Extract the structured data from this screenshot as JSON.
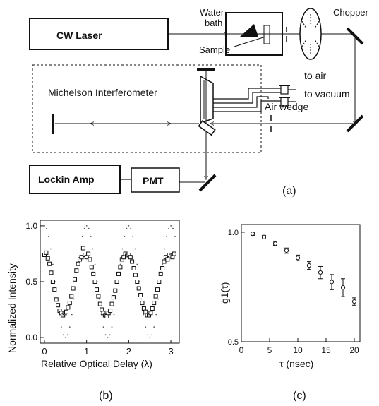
{
  "diagram": {
    "labels": {
      "cw_laser": "CW Laser",
      "water_bath_line1": "Water",
      "water_bath_line2": "bath",
      "sample": "Sample",
      "chopper": "Chopper",
      "michelson": "Michelson Interferometer",
      "to_air": "to air",
      "to_vacuum": "to vacuum",
      "air_wedge": "Air wedge",
      "lockin": "Lockin Amp",
      "pmt": "PMT"
    },
    "panel_labels": {
      "a": "(a)",
      "b": "(b)",
      "c": "(c)"
    }
  },
  "chart_data": [
    {
      "type": "scatter",
      "ylabel": "Normalized Intensity",
      "xlabel": "Relative Optical Delay (λ)",
      "xlim": [
        -0.1,
        3.2
      ],
      "ylim": [
        -0.05,
        1.05
      ],
      "xticks": [
        0,
        1,
        2,
        3
      ],
      "xtick_labels": [
        "0",
        "1",
        "2",
        "3"
      ],
      "yticks": [
        0.0,
        0.5,
        1.0
      ],
      "ytick_labels": [
        "0.0",
        "0.5",
        "1.0"
      ],
      "series": [
        {
          "style": "dotted-curve",
          "model": "0.5 + 0.5*cos(2*pi*x)",
          "x": [
            0,
            0.05,
            0.1,
            0.15,
            0.2,
            0.25,
            0.3,
            0.35,
            0.4,
            0.45,
            0.5,
            0.55,
            0.6,
            0.65,
            0.7,
            0.75,
            0.8,
            0.85,
            0.9,
            0.95,
            1.0,
            1.05,
            1.1,
            1.15,
            1.2,
            1.25,
            1.3,
            1.35,
            1.4,
            1.45,
            1.5,
            1.55,
            1.6,
            1.65,
            1.7,
            1.75,
            1.8,
            1.85,
            1.9,
            1.95,
            2.0,
            2.05,
            2.1,
            2.15,
            2.2,
            2.25,
            2.3,
            2.35,
            2.4,
            2.45,
            2.5,
            2.55,
            2.6,
            2.65,
            2.7,
            2.75,
            2.8,
            2.85,
            2.9,
            2.95,
            3.0,
            3.05,
            3.1
          ],
          "y": [
            1.0,
            0.976,
            0.905,
            0.794,
            0.655,
            0.5,
            0.345,
            0.206,
            0.095,
            0.024,
            0.0,
            0.024,
            0.095,
            0.206,
            0.345,
            0.5,
            0.655,
            0.794,
            0.905,
            0.976,
            1.0,
            0.976,
            0.905,
            0.794,
            0.655,
            0.5,
            0.345,
            0.206,
            0.095,
            0.024,
            0.0,
            0.024,
            0.095,
            0.206,
            0.345,
            0.5,
            0.655,
            0.794,
            0.905,
            0.976,
            1.0,
            0.976,
            0.905,
            0.794,
            0.655,
            0.5,
            0.345,
            0.206,
            0.095,
            0.024,
            0.0,
            0.024,
            0.095,
            0.206,
            0.345,
            0.5,
            0.655,
            0.794,
            0.905,
            0.976,
            1.0,
            0.976,
            0.905
          ]
        },
        {
          "style": "open-square",
          "x": [
            0.0,
            0.04,
            0.08,
            0.12,
            0.16,
            0.2,
            0.24,
            0.28,
            0.32,
            0.36,
            0.4,
            0.44,
            0.48,
            0.52,
            0.56,
            0.6,
            0.64,
            0.68,
            0.72,
            0.76,
            0.8,
            0.84,
            0.88,
            0.92,
            0.96,
            1.0,
            1.04,
            1.08,
            1.12,
            1.16,
            1.2,
            1.24,
            1.28,
            1.32,
            1.36,
            1.4,
            1.44,
            1.48,
            1.52,
            1.56,
            1.6,
            1.64,
            1.68,
            1.72,
            1.76,
            1.8,
            1.84,
            1.88,
            1.92,
            1.96,
            2.0,
            2.04,
            2.08,
            2.12,
            2.16,
            2.2,
            2.24,
            2.28,
            2.32,
            2.36,
            2.4,
            2.44,
            2.48,
            2.52,
            2.56,
            2.6,
            2.64,
            2.68,
            2.72,
            2.76,
            2.8,
            2.84,
            2.88,
            2.92,
            2.96,
            3.0,
            3.04,
            3.08
          ],
          "y": [
            0.74,
            0.76,
            0.71,
            0.66,
            0.58,
            0.5,
            0.43,
            0.34,
            0.29,
            0.24,
            0.22,
            0.2,
            0.22,
            0.23,
            0.27,
            0.31,
            0.37,
            0.44,
            0.52,
            0.6,
            0.66,
            0.7,
            0.72,
            0.8,
            0.74,
            0.72,
            0.75,
            0.7,
            0.63,
            0.57,
            0.5,
            0.43,
            0.37,
            0.3,
            0.25,
            0.22,
            0.2,
            0.19,
            0.22,
            0.24,
            0.3,
            0.36,
            0.42,
            0.5,
            0.57,
            0.63,
            0.7,
            0.72,
            0.75,
            0.73,
            0.74,
            0.72,
            0.68,
            0.62,
            0.56,
            0.5,
            0.44,
            0.38,
            0.31,
            0.26,
            0.23,
            0.2,
            0.2,
            0.22,
            0.26,
            0.31,
            0.37,
            0.43,
            0.5,
            0.57,
            0.62,
            0.68,
            0.72,
            0.7,
            0.74,
            0.73,
            0.72,
            0.75
          ]
        }
      ]
    },
    {
      "type": "scatter",
      "ylabel": "g1(τ)",
      "xlabel": "τ (nsec)",
      "xlim": [
        0,
        21
      ],
      "ylim": [
        0.5,
        1.05
      ],
      "xticks": [
        0,
        5,
        10,
        15,
        20
      ],
      "xtick_labels": [
        "0",
        "5",
        "10",
        "15",
        "20"
      ],
      "yticks": [
        0.5,
        1.0
      ],
      "ytick_labels": [
        "0.5",
        "1.0"
      ],
      "series": [
        {
          "style": "open-circle-errorbar",
          "x": [
            2,
            4,
            6,
            8,
            10,
            12,
            14,
            16,
            18,
            20
          ],
          "y": [
            0.99,
            0.97,
            0.93,
            0.89,
            0.85,
            0.81,
            0.775,
            0.73,
            0.705,
            0.645
          ],
          "err": [
            0.01,
            0.01,
            0.01,
            0.015,
            0.015,
            0.02,
            0.03,
            0.035,
            0.04,
            0.015
          ]
        }
      ]
    }
  ]
}
